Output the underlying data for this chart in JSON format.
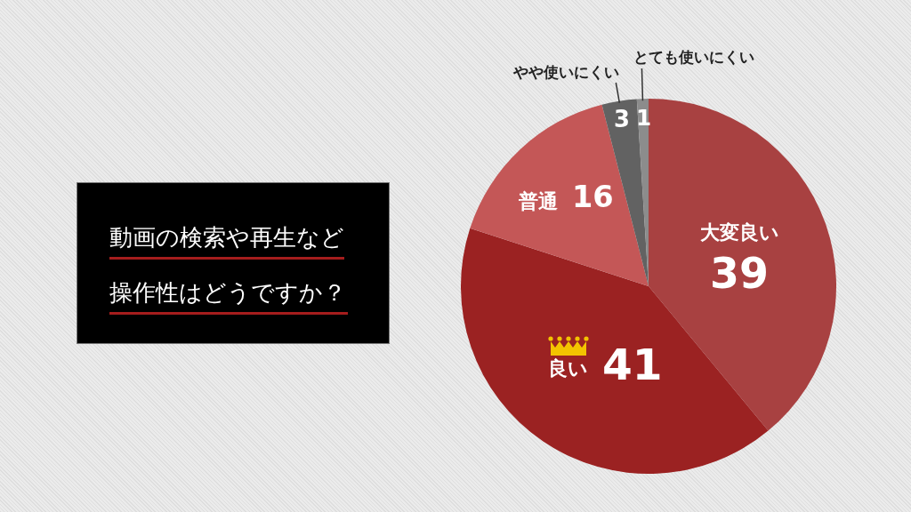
{
  "chart_data": {
    "type": "pie",
    "title": "動画の検索や再生など操作性はどうですか？",
    "categories": [
      "大変良い",
      "良い",
      "普通",
      "やや使いにくい",
      "とても使いにくい"
    ],
    "values": [
      39,
      41,
      16,
      3,
      1
    ],
    "colors": [
      "#a84141",
      "#9b2222",
      "#c45757",
      "#626262",
      "#8c8c8c"
    ],
    "data_labels": true
  }
}
